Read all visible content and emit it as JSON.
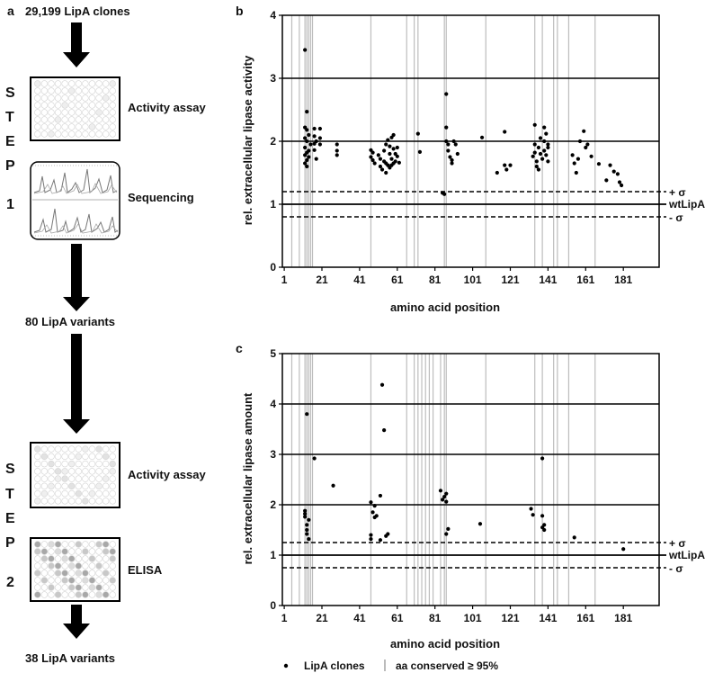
{
  "panel_a": {
    "label": "a",
    "start_text": "29,199 LipA clones",
    "mid_text": "80 LipA variants",
    "end_text": "38 LipA variants",
    "step1_word": [
      "S",
      "T",
      "E",
      "P"
    ],
    "step1_number": "1",
    "step2_word": [
      "S",
      "T",
      "E",
      "P"
    ],
    "step2_number": "2",
    "step1_box1_label": "Activity assay",
    "step1_box2_label": "Sequencing",
    "step2_box1_label": "Activity assay",
    "step2_box2_label": "ELISA"
  },
  "legend": {
    "dots_label": "LipA clones",
    "bars_label": "aa conserved ≥ 95%"
  },
  "chart_data": [
    {
      "type": "scatter",
      "panel": "b",
      "ylabel": "rel. extracellular lipase activity",
      "xlabel": "amino acid position",
      "xlim": [
        0,
        200
      ],
      "ylim": [
        0,
        4
      ],
      "xticks": [
        1,
        21,
        41,
        61,
        81,
        101,
        121,
        141,
        161,
        181
      ],
      "yticks": [
        0,
        1,
        2,
        3,
        4
      ],
      "grid_y": [
        2,
        3
      ],
      "wt_line": 1,
      "sigma_upper": 1.2,
      "sigma_lower": 0.8,
      "wt_label": "wtLipA",
      "sigma_plus_label": "+ σ",
      "sigma_minus_label": "- σ",
      "conserved_positions": [
        5,
        9,
        12,
        13,
        14,
        15,
        16,
        47,
        66,
        70,
        72,
        86,
        87,
        108,
        134,
        138,
        144,
        146,
        152,
        166
      ],
      "series": [
        {
          "name": "LipA clones",
          "points": [
            [
              12,
              3.45
            ],
            [
              13,
              2.47
            ],
            [
              12,
              2.22
            ],
            [
              13,
              2.18
            ],
            [
              14,
              2.1
            ],
            [
              12,
              2.05
            ],
            [
              13,
              2.0
            ],
            [
              15,
              1.95
            ],
            [
              12,
              1.9
            ],
            [
              14,
              1.85
            ],
            [
              13,
              1.82
            ],
            [
              12,
              1.78
            ],
            [
              14,
              1.75
            ],
            [
              13,
              1.7
            ],
            [
              12,
              1.65
            ],
            [
              13,
              1.6
            ],
            [
              17,
              2.2
            ],
            [
              17,
              2.08
            ],
            [
              17,
              1.96
            ],
            [
              17,
              1.86
            ],
            [
              18,
              2.0
            ],
            [
              18,
              1.72
            ],
            [
              20,
              2.2
            ],
            [
              20,
              2.05
            ],
            [
              20,
              1.95
            ],
            [
              29,
              1.95
            ],
            [
              29,
              1.85
            ],
            [
              29,
              1.78
            ],
            [
              47,
              1.86
            ],
            [
              48,
              1.82
            ],
            [
              47,
              1.75
            ],
            [
              48,
              1.7
            ],
            [
              49,
              1.65
            ],
            [
              51,
              1.78
            ],
            [
              52,
              1.72
            ],
            [
              52,
              1.6
            ],
            [
              53,
              1.55
            ],
            [
              54,
              1.85
            ],
            [
              54,
              1.68
            ],
            [
              55,
              1.95
            ],
            [
              55,
              1.65
            ],
            [
              55,
              1.5
            ],
            [
              56,
              2.02
            ],
            [
              56,
              1.62
            ],
            [
              57,
              1.92
            ],
            [
              57,
              1.8
            ],
            [
              57,
              1.58
            ],
            [
              58,
              2.06
            ],
            [
              58,
              1.72
            ],
            [
              58,
              1.62
            ],
            [
              59,
              2.1
            ],
            [
              59,
              1.88
            ],
            [
              59,
              1.65
            ],
            [
              60,
              1.8
            ],
            [
              60,
              1.68
            ],
            [
              61,
              1.9
            ],
            [
              61,
              1.76
            ],
            [
              62,
              1.66
            ],
            [
              72,
              2.12
            ],
            [
              73,
              1.83
            ],
            [
              85,
              1.18
            ],
            [
              86,
              1.16
            ],
            [
              87,
              2.75
            ],
            [
              87,
              2.22
            ],
            [
              87,
              2.0
            ],
            [
              88,
              1.95
            ],
            [
              88,
              1.85
            ],
            [
              89,
              1.75
            ],
            [
              90,
              1.7
            ],
            [
              90,
              1.65
            ],
            [
              91,
              2.0
            ],
            [
              92,
              1.95
            ],
            [
              93,
              1.8
            ],
            [
              106,
              2.06
            ],
            [
              114,
              1.5
            ],
            [
              118,
              2.15
            ],
            [
              118,
              1.62
            ],
            [
              119,
              1.55
            ],
            [
              121,
              1.62
            ],
            [
              133,
              1.76
            ],
            [
              134,
              2.26
            ],
            [
              134,
              1.95
            ],
            [
              134,
              1.82
            ],
            [
              135,
              1.68
            ],
            [
              135,
              1.6
            ],
            [
              136,
              1.55
            ],
            [
              136,
              1.9
            ],
            [
              137,
              2.05
            ],
            [
              137,
              1.8
            ],
            [
              138,
              1.72
            ],
            [
              139,
              2.22
            ],
            [
              139,
              2.0
            ],
            [
              139,
              1.85
            ],
            [
              140,
              1.78
            ],
            [
              140,
              2.12
            ],
            [
              141,
              1.95
            ],
            [
              141,
              1.9
            ],
            [
              141,
              1.68
            ],
            [
              154,
              1.78
            ],
            [
              155,
              1.65
            ],
            [
              156,
              1.5
            ],
            [
              157,
              1.72
            ],
            [
              158,
              2.0
            ],
            [
              160,
              2.16
            ],
            [
              161,
              1.9
            ],
            [
              162,
              1.95
            ],
            [
              164,
              1.76
            ],
            [
              168,
              1.64
            ],
            [
              172,
              1.38
            ],
            [
              174,
              1.62
            ],
            [
              176,
              1.52
            ],
            [
              178,
              1.48
            ],
            [
              179,
              1.35
            ],
            [
              180,
              1.3
            ]
          ]
        }
      ]
    },
    {
      "type": "scatter",
      "panel": "c",
      "ylabel": "rel. extracellular lipase amount",
      "xlabel": "amino acid position",
      "xlim": [
        0,
        200
      ],
      "ylim": [
        0,
        5
      ],
      "xticks": [
        1,
        21,
        41,
        61,
        81,
        101,
        121,
        141,
        161,
        181
      ],
      "yticks": [
        0,
        1,
        2,
        3,
        4,
        5
      ],
      "grid_y": [
        2,
        3,
        4
      ],
      "wt_line": 1,
      "sigma_upper": 1.25,
      "sigma_lower": 0.75,
      "wt_label": "wtLipA",
      "sigma_plus_label": "+ σ",
      "sigma_minus_label": "- σ",
      "conserved_positions": [
        5,
        9,
        12,
        13,
        14,
        15,
        16,
        47,
        66,
        70,
        72,
        74,
        76,
        78,
        80,
        84,
        86,
        87,
        108,
        134,
        138,
        144,
        146,
        152,
        166
      ],
      "series": [
        {
          "name": "LipA clones",
          "points": [
            [
              13,
              3.8
            ],
            [
              17,
              2.92
            ],
            [
              12,
              1.88
            ],
            [
              12,
              1.82
            ],
            [
              12,
              1.76
            ],
            [
              13,
              1.6
            ],
            [
              13,
              1.5
            ],
            [
              13,
              1.42
            ],
            [
              14,
              1.7
            ],
            [
              14,
              1.32
            ],
            [
              27,
              2.38
            ],
            [
              47,
              2.05
            ],
            [
              47,
              1.4
            ],
            [
              47,
              1.32
            ],
            [
              48,
              1.85
            ],
            [
              49,
              1.98
            ],
            [
              49,
              1.75
            ],
            [
              50,
              1.78
            ],
            [
              52,
              2.18
            ],
            [
              52,
              1.3
            ],
            [
              53,
              4.38
            ],
            [
              54,
              3.48
            ],
            [
              55,
              1.38
            ],
            [
              56,
              1.42
            ],
            [
              84,
              2.28
            ],
            [
              85,
              2.1
            ],
            [
              86,
              2.16
            ],
            [
              87,
              2.06
            ],
            [
              87,
              1.42
            ],
            [
              88,
              1.52
            ],
            [
              87,
              2.22
            ],
            [
              105,
              1.62
            ],
            [
              132,
              1.92
            ],
            [
              133,
              1.8
            ],
            [
              138,
              2.92
            ],
            [
              138,
              1.78
            ],
            [
              138,
              1.55
            ],
            [
              139,
              1.6
            ],
            [
              139,
              1.5
            ],
            [
              155,
              1.35
            ],
            [
              181,
              1.12
            ]
          ]
        }
      ]
    }
  ]
}
